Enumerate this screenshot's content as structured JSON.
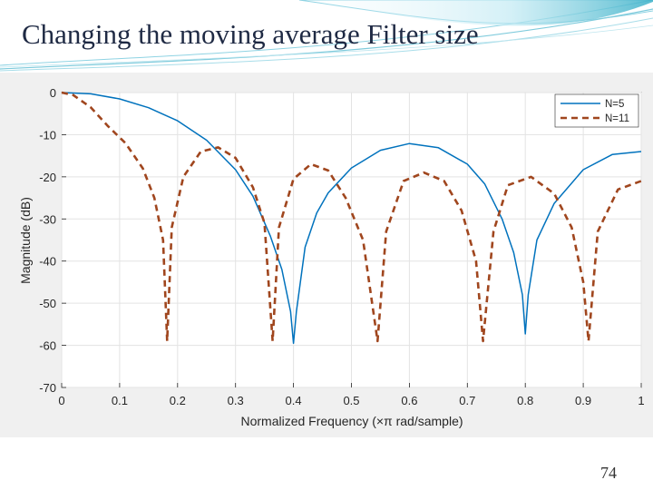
{
  "slide": {
    "title": "Changing the moving average Filter size",
    "page_number": "74"
  },
  "colors": {
    "title_text": "#1f2a44",
    "wave_accent": "#3ab0c8",
    "n5_series": "#0072bd",
    "n11_series": "#a0461e",
    "panel_background": "#f0f0f0"
  },
  "chart_data": {
    "type": "line",
    "title": "",
    "xlabel": "Normalized Frequency  (×π rad/sample)",
    "ylabel": "Magnitude (dB)",
    "xlim": [
      0,
      1
    ],
    "ylim": [
      -70,
      0
    ],
    "xticks": [
      "0",
      "0.1",
      "0.2",
      "0.3",
      "0.4",
      "0.5",
      "0.6",
      "0.7",
      "0.8",
      "0.9",
      "1"
    ],
    "yticks": [
      "0",
      "-10",
      "-20",
      "-30",
      "-40",
      "-50",
      "-60",
      "-70"
    ],
    "grid": true,
    "legend_position": "top-right",
    "series": [
      {
        "name": "N=5",
        "style": "solid",
        "filter_length": 5,
        "points": [
          [
            0,
            0
          ],
          [
            0.05,
            -0.3
          ],
          [
            0.1,
            -1.5
          ],
          [
            0.15,
            -3.6
          ],
          [
            0.2,
            -6.7
          ],
          [
            0.25,
            -11.3
          ],
          [
            0.3,
            -18.3
          ],
          [
            0.33,
            -24.6
          ],
          [
            0.36,
            -34.0
          ],
          [
            0.38,
            -42.0
          ],
          [
            0.395,
            -52.0
          ],
          [
            0.4,
            -59.5
          ],
          [
            0.405,
            -52.0
          ],
          [
            0.42,
            -36.7
          ],
          [
            0.44,
            -28.6
          ],
          [
            0.46,
            -23.8
          ],
          [
            0.5,
            -17.9
          ],
          [
            0.55,
            -13.7
          ],
          [
            0.6,
            -12.1
          ],
          [
            0.65,
            -13.1
          ],
          [
            0.7,
            -17.0
          ],
          [
            0.73,
            -21.7
          ],
          [
            0.76,
            -30.0
          ],
          [
            0.78,
            -38.0
          ],
          [
            0.795,
            -48.0
          ],
          [
            0.8,
            -57.3
          ],
          [
            0.805,
            -48.0
          ],
          [
            0.82,
            -35.0
          ],
          [
            0.85,
            -26.3
          ],
          [
            0.9,
            -18.3
          ],
          [
            0.95,
            -14.7
          ],
          [
            1,
            -14.0
          ]
        ]
      },
      {
        "name": "N=11",
        "style": "dashed",
        "filter_length": 11,
        "points": [
          [
            0,
            0
          ],
          [
            0.02,
            -0.6
          ],
          [
            0.05,
            -3.5
          ],
          [
            0.08,
            -8.0
          ],
          [
            0.11,
            -12.0
          ],
          [
            0.14,
            -18.0
          ],
          [
            0.16,
            -25.0
          ],
          [
            0.175,
            -35.0
          ],
          [
            0.182,
            -59.0
          ],
          [
            0.19,
            -32.0
          ],
          [
            0.21,
            -20.0
          ],
          [
            0.24,
            -14.0
          ],
          [
            0.27,
            -13.0
          ],
          [
            0.3,
            -15.5
          ],
          [
            0.33,
            -22.5
          ],
          [
            0.35,
            -31.0
          ],
          [
            0.364,
            -59.0
          ],
          [
            0.375,
            -32.0
          ],
          [
            0.4,
            -20.5
          ],
          [
            0.43,
            -17.0
          ],
          [
            0.46,
            -18.5
          ],
          [
            0.49,
            -25.0
          ],
          [
            0.52,
            -35.0
          ],
          [
            0.545,
            -59.0
          ],
          [
            0.56,
            -33.0
          ],
          [
            0.59,
            -21.0
          ],
          [
            0.625,
            -19.0
          ],
          [
            0.66,
            -21.0
          ],
          [
            0.69,
            -28.0
          ],
          [
            0.715,
            -40.0
          ],
          [
            0.727,
            -59.0
          ],
          [
            0.745,
            -33.0
          ],
          [
            0.77,
            -22.0
          ],
          [
            0.81,
            -20.0
          ],
          [
            0.85,
            -24.0
          ],
          [
            0.88,
            -32.0
          ],
          [
            0.9,
            -45.0
          ],
          [
            0.909,
            -59.0
          ],
          [
            0.925,
            -33.0
          ],
          [
            0.96,
            -23.0
          ],
          [
            1,
            -21.0
          ]
        ]
      }
    ]
  }
}
